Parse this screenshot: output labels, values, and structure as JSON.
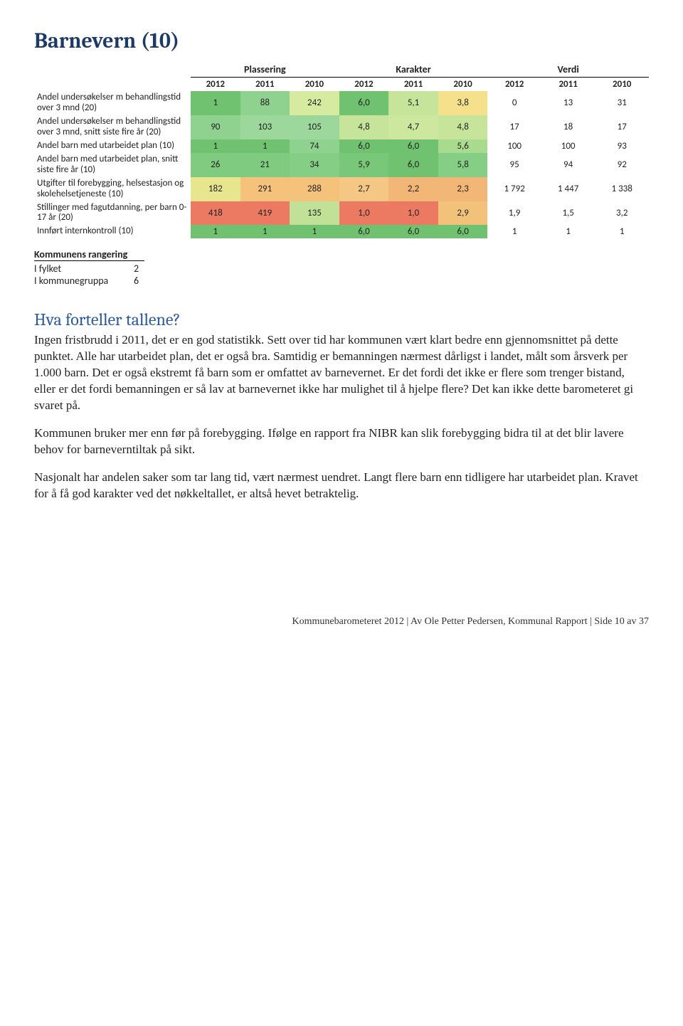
{
  "title": "Barnevern  (10)",
  "table": {
    "group_headers": [
      "Plassering",
      "Karakter",
      "Verdi"
    ],
    "year_headers": [
      "2012",
      "2011",
      "2010",
      "2012",
      "2011",
      "2010",
      "2012",
      "2011",
      "2010"
    ],
    "rows": [
      {
        "label": "Andel undersøkelser m behandlingstid over 3 mnd (20)",
        "cells": [
          {
            "v": "1",
            "bg": "#70c170"
          },
          {
            "v": "88",
            "bg": "#8fd28f"
          },
          {
            "v": "242",
            "bg": "#d6eaa0"
          },
          {
            "v": "6,0",
            "bg": "#70c170"
          },
          {
            "v": "5,1",
            "bg": "#c7e59a"
          },
          {
            "v": "3,8",
            "bg": "#f5e08c"
          },
          {
            "v": "0",
            "bg": "#ffffff"
          },
          {
            "v": "13",
            "bg": "#ffffff"
          },
          {
            "v": "31",
            "bg": "#ffffff"
          }
        ]
      },
      {
        "label": "Andel undersøkelser m behandlingstid over 3 mnd, snitt siste fire år (20)",
        "cells": [
          {
            "v": "90",
            "bg": "#8fd28f"
          },
          {
            "v": "103",
            "bg": "#9cd79c"
          },
          {
            "v": "105",
            "bg": "#9cd79c"
          },
          {
            "v": "4,8",
            "bg": "#c7e59a"
          },
          {
            "v": "4,7",
            "bg": "#cde89e"
          },
          {
            "v": "4,8",
            "bg": "#c7e59a"
          },
          {
            "v": "17",
            "bg": "#ffffff"
          },
          {
            "v": "18",
            "bg": "#ffffff"
          },
          {
            "v": "17",
            "bg": "#ffffff"
          }
        ]
      },
      {
        "label": "Andel barn med utarbeidet plan (10)",
        "cells": [
          {
            "v": "1",
            "bg": "#70c170"
          },
          {
            "v": "1",
            "bg": "#70c170"
          },
          {
            "v": "74",
            "bg": "#8fd28f"
          },
          {
            "v": "6,0",
            "bg": "#70c170"
          },
          {
            "v": "6,0",
            "bg": "#70c170"
          },
          {
            "v": "5,6",
            "bg": "#a9db8f"
          },
          {
            "v": "100",
            "bg": "#ffffff"
          },
          {
            "v": "100",
            "bg": "#ffffff"
          },
          {
            "v": "93",
            "bg": "#ffffff"
          }
        ]
      },
      {
        "label": "Andel barn med utarbeidet plan, snitt siste fire år (10)",
        "cells": [
          {
            "v": "26",
            "bg": "#7fcb7f"
          },
          {
            "v": "21",
            "bg": "#7fcb7f"
          },
          {
            "v": "34",
            "bg": "#85ce85"
          },
          {
            "v": "5,9",
            "bg": "#79c879"
          },
          {
            "v": "6,0",
            "bg": "#70c170"
          },
          {
            "v": "5,8",
            "bg": "#85ce85"
          },
          {
            "v": "95",
            "bg": "#ffffff"
          },
          {
            "v": "94",
            "bg": "#ffffff"
          },
          {
            "v": "92",
            "bg": "#ffffff"
          }
        ]
      },
      {
        "label": "Utgifter til forebygging, helsestasjon og skolehelsetjeneste (10)",
        "cells": [
          {
            "v": "182",
            "bg": "#e8e58f"
          },
          {
            "v": "291",
            "bg": "#f4c27a"
          },
          {
            "v": "288",
            "bg": "#f4c27a"
          },
          {
            "v": "2,7",
            "bg": "#f4c884"
          },
          {
            "v": "2,2",
            "bg": "#f2b676"
          },
          {
            "v": "2,3",
            "bg": "#f2b676"
          },
          {
            "v": "1 792",
            "bg": "#ffffff"
          },
          {
            "v": "1 447",
            "bg": "#ffffff"
          },
          {
            "v": "1 338",
            "bg": "#ffffff"
          }
        ]
      },
      {
        "label": "Stillinger med fagutdanning, per barn 0-17 år (20)",
        "cells": [
          {
            "v": "418",
            "bg": "#ec7a63"
          },
          {
            "v": "419",
            "bg": "#ec7a63"
          },
          {
            "v": "135",
            "bg": "#c0e196"
          },
          {
            "v": "1,0",
            "bg": "#ec7a63"
          },
          {
            "v": "1,0",
            "bg": "#ec7a63"
          },
          {
            "v": "2,9",
            "bg": "#f2c27a"
          },
          {
            "v": "1,9",
            "bg": "#ffffff"
          },
          {
            "v": "1,5",
            "bg": "#ffffff"
          },
          {
            "v": "3,2",
            "bg": "#ffffff"
          }
        ]
      },
      {
        "label": "Innført internkontroll (10)",
        "cells": [
          {
            "v": "1",
            "bg": "#70c170"
          },
          {
            "v": "1",
            "bg": "#70c170"
          },
          {
            "v": "1",
            "bg": "#70c170"
          },
          {
            "v": "6,0",
            "bg": "#70c170"
          },
          {
            "v": "6,0",
            "bg": "#70c170"
          },
          {
            "v": "6,0",
            "bg": "#70c170"
          },
          {
            "v": "1",
            "bg": "#ffffff"
          },
          {
            "v": "1",
            "bg": "#ffffff"
          },
          {
            "v": "1",
            "bg": "#ffffff"
          }
        ]
      }
    ]
  },
  "ranking": {
    "heading": "Kommunens rangering",
    "rows": [
      {
        "label": "I fylket",
        "value": "2"
      },
      {
        "label": "I kommunegruppa",
        "value": "6"
      }
    ]
  },
  "analysis": {
    "heading": "Hva forteller tallene?",
    "paragraphs": [
      "Ingen fristbrudd i 2011, det er en god statistikk. Sett over tid har kommunen vært klart bedre enn gjennomsnittet på dette punktet. Alle har utarbeidet plan, det er også bra. Samtidig er bemanningen nærmest dårligst i landet, målt som årsverk per 1.000 barn. Det er også ekstremt få barn som er omfattet av barnevernet. Er det fordi det ikke er flere som trenger bistand, eller er det fordi bemanningen er så lav at barnevernet ikke har mulighet til å hjelpe flere? Det kan ikke dette barometeret gi svaret på.",
      "Kommunen bruker mer enn før på forebygging. Ifølge en rapport fra NIBR kan slik forebygging bidra til at det blir lavere behov for barneverntiltak på sikt.",
      "Nasjonalt har andelen saker som tar lang tid, vært nærmest uendret. Langt flere barn enn tidligere har utarbeidet plan. Kravet for å få god karakter ved det nøkkeltallet, er altså hevet betraktelig."
    ]
  },
  "footer": "Kommunebarometeret 2012 | Av Ole Petter Pedersen, Kommunal Rapport | Side 10 av 37"
}
